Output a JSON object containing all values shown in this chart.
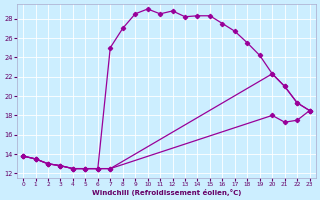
{
  "xlabel": "Windchill (Refroidissement éolien,°C)",
  "bg_color": "#cceeff",
  "line_color": "#990099",
  "xlim": [
    -0.5,
    23.5
  ],
  "ylim": [
    11.5,
    29.5
  ],
  "yticks": [
    12,
    14,
    16,
    18,
    20,
    22,
    24,
    26,
    28
  ],
  "xticks": [
    0,
    1,
    2,
    3,
    4,
    5,
    6,
    7,
    8,
    9,
    10,
    11,
    12,
    13,
    14,
    15,
    16,
    17,
    18,
    19,
    20,
    21,
    22,
    23
  ],
  "line1_x": [
    0,
    1,
    2,
    3,
    4,
    5,
    6,
    7,
    8,
    9,
    10,
    11,
    12,
    13,
    14,
    15,
    16,
    17,
    18,
    19,
    20,
    21,
    22,
    23
  ],
  "line1_y": [
    13.8,
    13.5,
    13.0,
    12.8,
    12.5,
    12.5,
    12.5,
    25.0,
    27.0,
    28.5,
    29.0,
    28.5,
    28.8,
    28.2,
    28.3,
    28.3,
    27.5,
    26.7,
    25.5,
    24.2,
    22.3,
    21.0,
    19.3,
    18.5
  ],
  "line2_x": [
    0,
    1,
    2,
    3,
    4,
    5,
    6,
    7,
    20,
    21,
    22,
    23
  ],
  "line2_y": [
    13.8,
    13.5,
    13.0,
    12.8,
    12.5,
    12.5,
    12.5,
    12.5,
    22.3,
    21.0,
    19.3,
    18.5
  ],
  "line3_x": [
    0,
    1,
    2,
    3,
    4,
    5,
    6,
    7,
    20,
    21,
    22,
    23
  ],
  "line3_y": [
    13.8,
    13.5,
    13.0,
    12.8,
    12.5,
    12.5,
    12.5,
    12.5,
    18.0,
    17.3,
    17.5,
    18.5
  ]
}
